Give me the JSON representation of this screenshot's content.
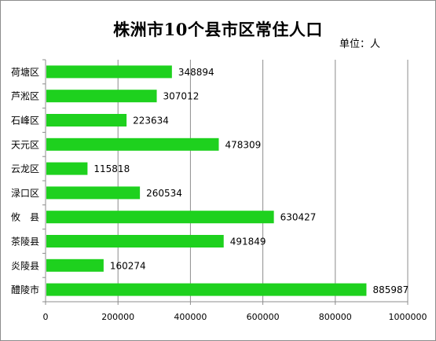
{
  "chart_data": {
    "type": "bar",
    "orientation": "horizontal",
    "title": "株洲市10个县市区常住人口",
    "unit_label": "单位：人",
    "categories": [
      "荷塘区",
      "芦淞区",
      "石峰区",
      "天元区",
      "云龙区",
      "渌口区",
      "攸　县",
      "茶陵县",
      "炎陵县",
      "醴陵市"
    ],
    "values": [
      348894,
      307012,
      223634,
      478309,
      115818,
      260534,
      630427,
      491849,
      160274,
      885987
    ],
    "xlim": [
      0,
      1000000
    ],
    "xticks": [
      "0",
      "200000",
      "400000",
      "600000",
      "800000",
      "1000000"
    ],
    "grid": true,
    "bar_color": "#1ed11e",
    "gridline_color": "#8c8c8c"
  }
}
